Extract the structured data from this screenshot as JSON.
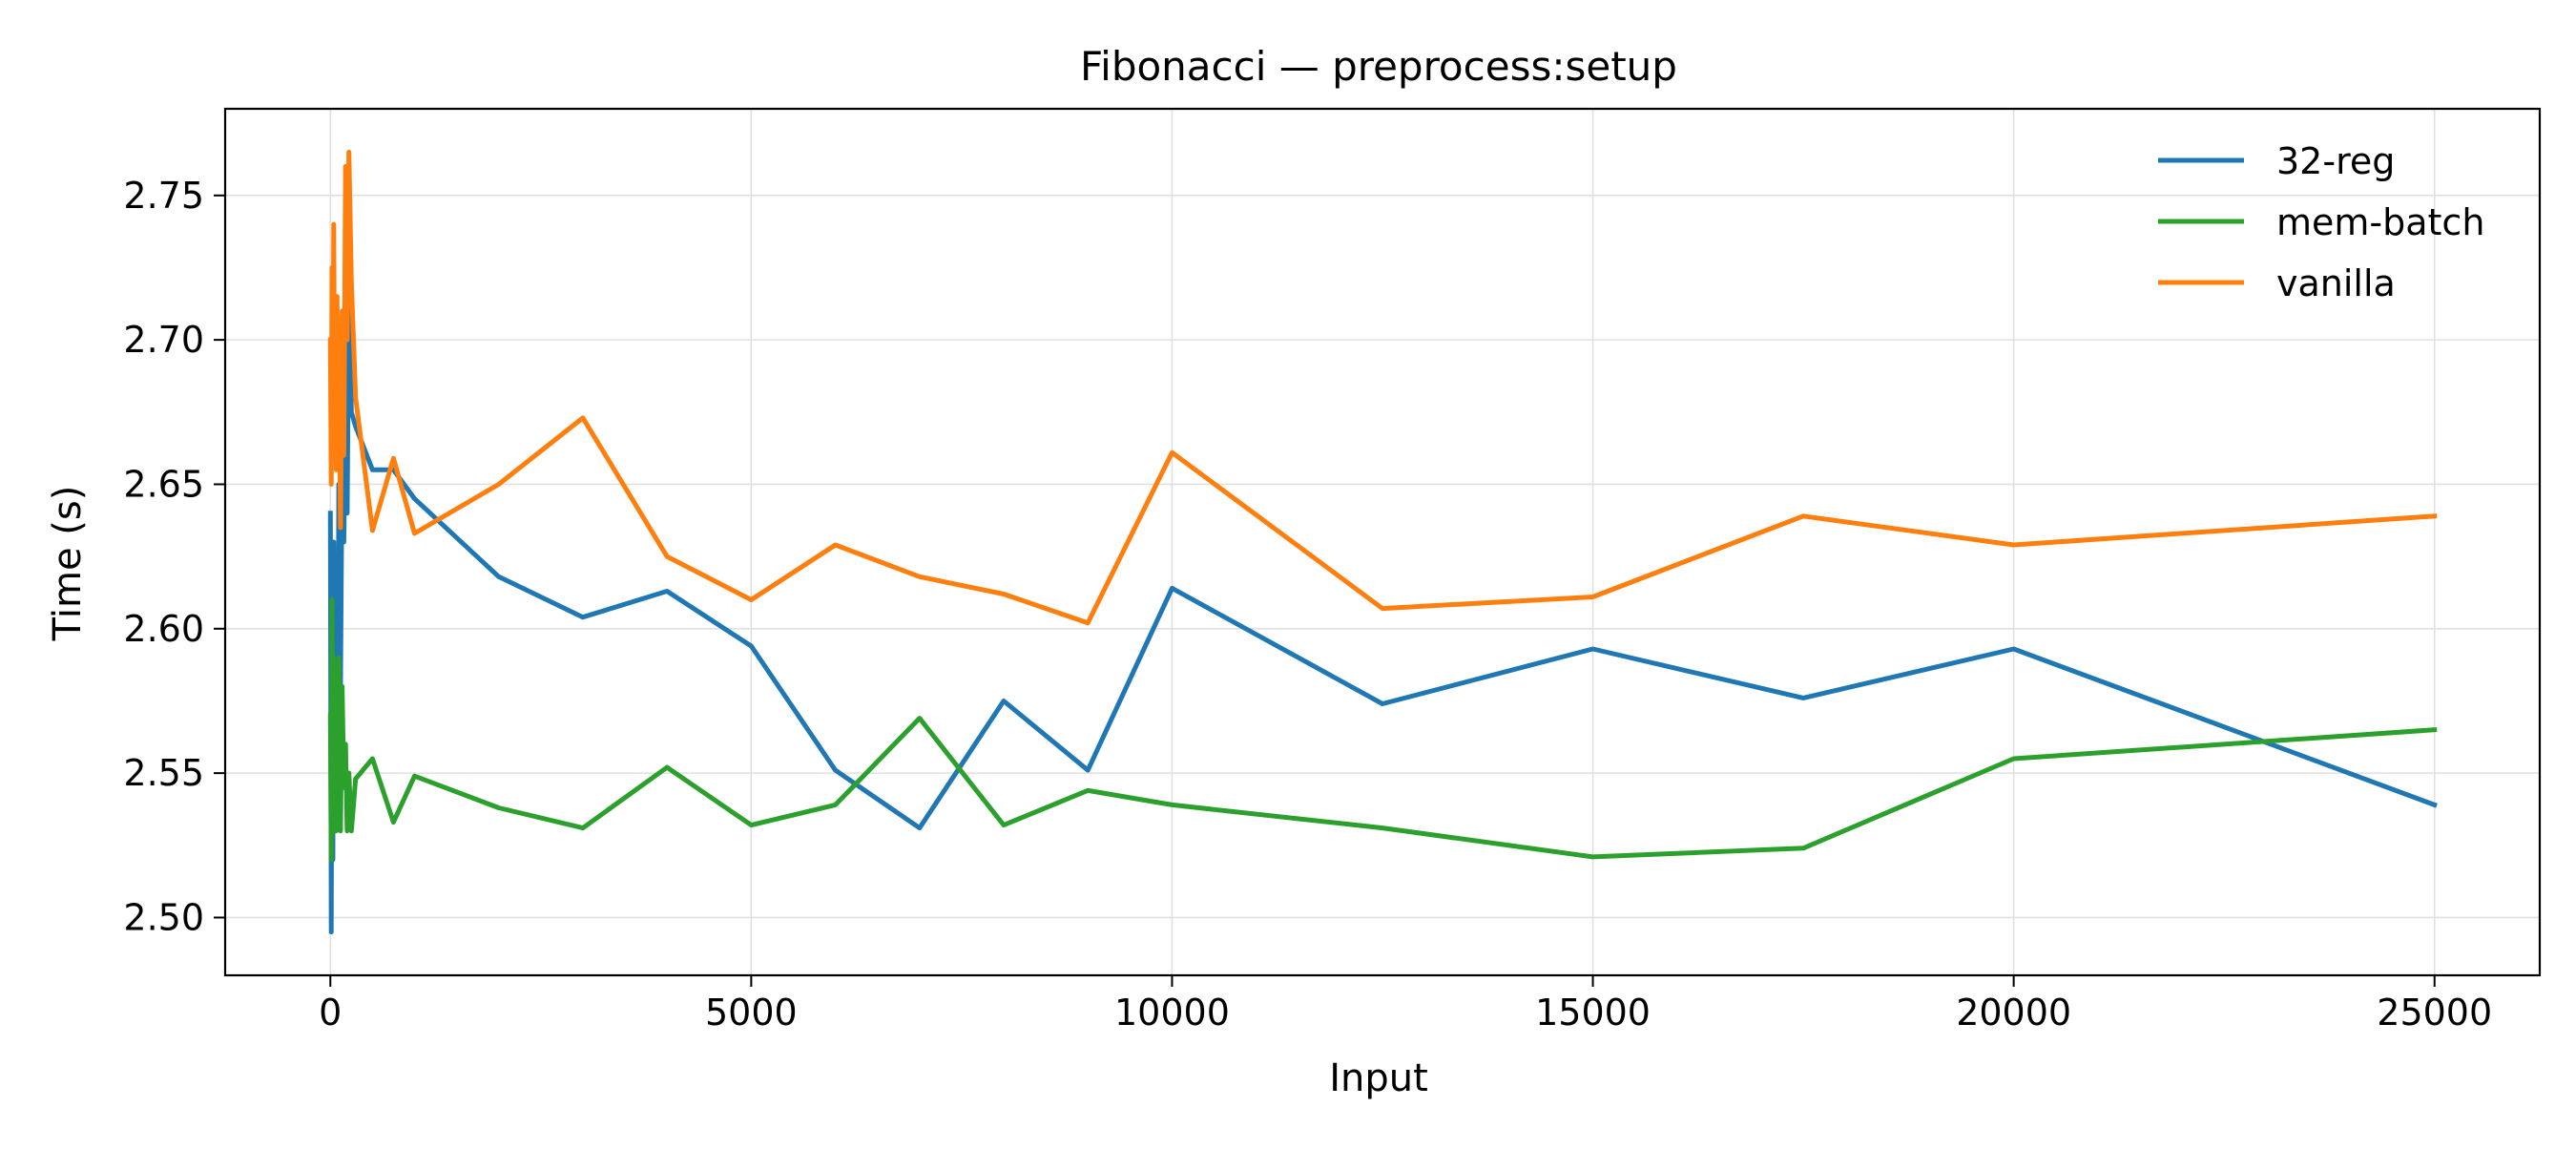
{
  "chart_data": {
    "type": "line",
    "title": "Fibonacci — preprocess:setup",
    "xlabel": "Input",
    "ylabel": "Time (s)",
    "xlim": [
      -1250,
      26250
    ],
    "ylim": [
      2.48,
      2.78
    ],
    "xticks": [
      0,
      5000,
      10000,
      15000,
      20000,
      25000
    ],
    "xtick_labels": [
      "0",
      "5000",
      "10000",
      "15000",
      "20000",
      "25000"
    ],
    "yticks": [
      2.5,
      2.55,
      2.6,
      2.65,
      2.7,
      2.75
    ],
    "ytick_labels": [
      "2.50",
      "2.55",
      "2.60",
      "2.65",
      "2.70",
      "2.75"
    ],
    "grid": true,
    "legend_position": "top-right",
    "series": [
      {
        "name": "32-reg",
        "color": "#1f77b4",
        "x": [
          0,
          10,
          20,
          30,
          40,
          50,
          60,
          70,
          80,
          90,
          100,
          120,
          140,
          160,
          180,
          200,
          220,
          250,
          300,
          500,
          750,
          1000,
          2000,
          3000,
          4000,
          5000,
          6000,
          7000,
          8000,
          9000,
          10000,
          12500,
          15000,
          17500,
          20000,
          25000
        ],
        "y": [
          2.64,
          2.495,
          2.6,
          2.52,
          2.63,
          2.55,
          2.62,
          2.57,
          2.61,
          2.56,
          2.65,
          2.58,
          2.66,
          2.63,
          2.68,
          2.64,
          2.72,
          2.675,
          2.67,
          2.655,
          2.655,
          2.645,
          2.618,
          2.604,
          2.613,
          2.594,
          2.551,
          2.531,
          2.575,
          2.551,
          2.614,
          2.574,
          2.593,
          2.576,
          2.593,
          2.539
        ]
      },
      {
        "name": "mem-batch",
        "color": "#2ca02c",
        "x": [
          0,
          10,
          20,
          30,
          40,
          50,
          60,
          70,
          80,
          90,
          100,
          120,
          140,
          160,
          180,
          200,
          220,
          250,
          300,
          500,
          750,
          1000,
          2000,
          3000,
          4000,
          5000,
          6000,
          7000,
          8000,
          9000,
          10000,
          12500,
          15000,
          17500,
          20000,
          25000
        ],
        "y": [
          2.57,
          2.52,
          2.61,
          2.53,
          2.59,
          2.54,
          2.58,
          2.53,
          2.57,
          2.55,
          2.59,
          2.53,
          2.58,
          2.545,
          2.56,
          2.53,
          2.55,
          2.53,
          2.548,
          2.555,
          2.533,
          2.549,
          2.538,
          2.531,
          2.552,
          2.532,
          2.539,
          2.569,
          2.532,
          2.544,
          2.539,
          2.531,
          2.521,
          2.524,
          2.555,
          2.565
        ]
      },
      {
        "name": "vanilla",
        "color": "#ff7f0e",
        "x": [
          0,
          10,
          20,
          30,
          40,
          50,
          60,
          70,
          80,
          90,
          100,
          120,
          140,
          160,
          180,
          200,
          220,
          250,
          300,
          500,
          750,
          1000,
          2000,
          3000,
          4000,
          5000,
          6000,
          7000,
          8000,
          9000,
          10000,
          12500,
          15000,
          17500,
          20000,
          25000
        ],
        "y": [
          2.7,
          2.65,
          2.725,
          2.66,
          2.74,
          2.67,
          2.7,
          2.655,
          2.715,
          2.66,
          2.7,
          2.635,
          2.71,
          2.66,
          2.76,
          2.7,
          2.765,
          2.72,
          2.68,
          2.634,
          2.659,
          2.633,
          2.65,
          2.673,
          2.625,
          2.61,
          2.629,
          2.618,
          2.612,
          2.602,
          2.661,
          2.607,
          2.611,
          2.639,
          2.629,
          2.639
        ]
      }
    ]
  }
}
